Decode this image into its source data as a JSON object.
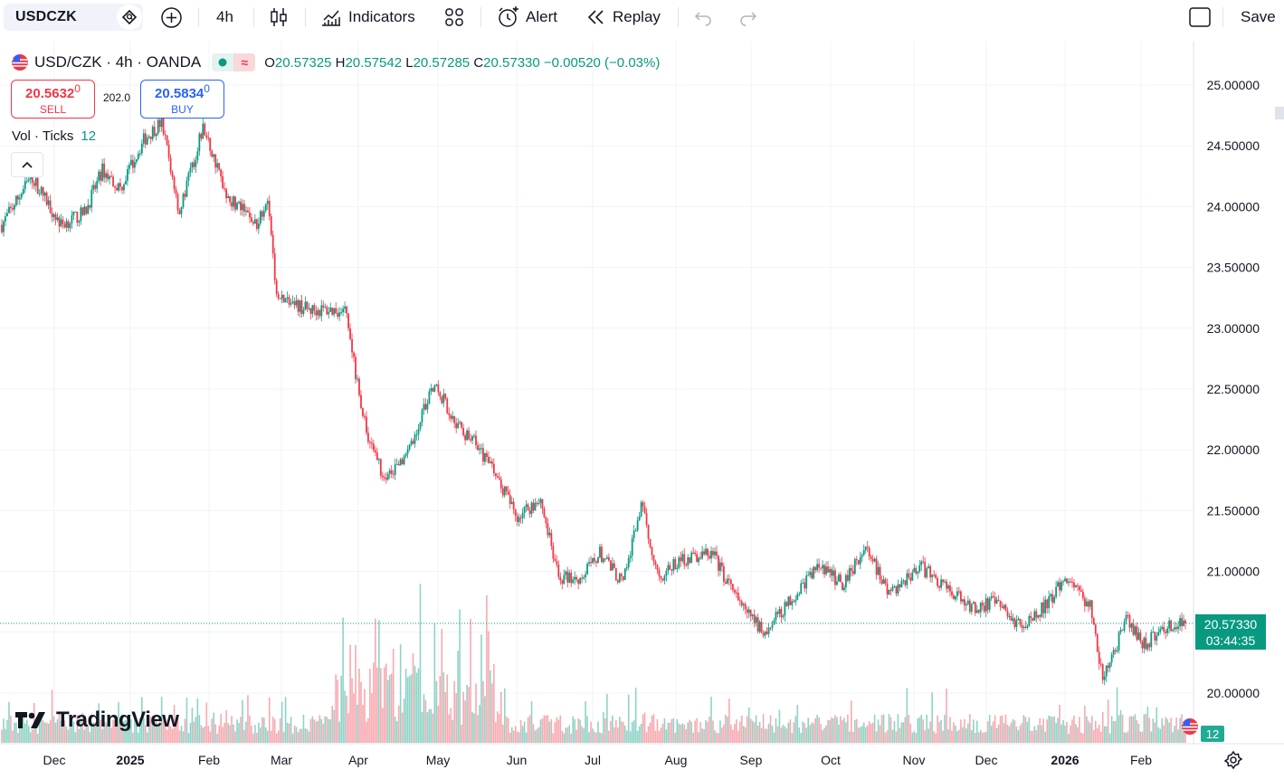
{
  "toolbar": {
    "symbol": "USDCZK",
    "interval": "4h",
    "indicators_label": "Indicators",
    "alert_label": "Alert",
    "replay_label": "Replay",
    "save_label": "Save"
  },
  "legend": {
    "title": "USD/CZK · 4h · OANDA",
    "open_key": "O",
    "open": "20.57325",
    "high_key": "H",
    "high": "20.57542",
    "low_key": "L",
    "low": "20.57285",
    "close_key": "C",
    "close": "20.57330",
    "change": "−0.00520 (−0.03%)"
  },
  "trade": {
    "sell_price": "20.5632",
    "sell_price_sup": "0",
    "sell_label": "SELL",
    "buy_price": "20.5834",
    "buy_price_sup": "0",
    "buy_label": "BUY",
    "spread": "202.0"
  },
  "volume_legend": {
    "label": "Vol · Ticks",
    "value": "12"
  },
  "current_price": {
    "price": "20.57330",
    "countdown": "03:44:35"
  },
  "volume_badge": "12",
  "logo_text": "TradingView",
  "colors": {
    "up": "#089981",
    "down": "#f23645",
    "up_vol": "#8fd3c6",
    "down_vol": "#f7a9b0",
    "grid": "#f0f3fa",
    "accent": "#2962ff"
  },
  "icons": {
    "symbol_search": "search-diamond-icon",
    "add_symbol": "plus-circle-icon",
    "chart_type": "candles-icon",
    "indicators": "indicators-icon",
    "layouts": "grid-icon",
    "alert": "alarm-clock-icon",
    "replay": "rewind-icon",
    "undo": "undo-icon",
    "redo": "redo-icon",
    "fullscreen": "square-icon",
    "settings": "gear-icon"
  },
  "chart_data": {
    "type": "candlestick",
    "y_ticks": [
      "25.00000",
      "24.50000",
      "24.00000",
      "23.50000",
      "23.00000",
      "22.50000",
      "22.00000",
      "21.50000",
      "21.00000",
      "20.50000",
      "20.00000"
    ],
    "x_ticks": [
      "Dec",
      "2025",
      "Feb",
      "Mar",
      "Apr",
      "May",
      "Jun",
      "Jul",
      "Aug",
      "Sep",
      "Oct",
      "Nov",
      "Dec",
      "2026",
      "Feb"
    ],
    "ylim": [
      19.86,
      25.1
    ],
    "last_price": 20.5733,
    "path": [
      {
        "t": 0,
        "p": 23.85
      },
      {
        "t": 0.025,
        "p": 24.25
      },
      {
        "t": 0.05,
        "p": 23.85
      },
      {
        "t": 0.07,
        "p": 23.95
      },
      {
        "t": 0.085,
        "p": 24.3
      },
      {
        "t": 0.1,
        "p": 24.15
      },
      {
        "t": 0.12,
        "p": 24.55
      },
      {
        "t": 0.135,
        "p": 24.7
      },
      {
        "t": 0.15,
        "p": 23.95
      },
      {
        "t": 0.17,
        "p": 24.65
      },
      {
        "t": 0.19,
        "p": 24.1
      },
      {
        "t": 0.215,
        "p": 23.85
      },
      {
        "t": 0.225,
        "p": 24.1
      },
      {
        "t": 0.232,
        "p": 23.25
      },
      {
        "t": 0.26,
        "p": 23.15
      },
      {
        "t": 0.29,
        "p": 23.15
      },
      {
        "t": 0.3,
        "p": 22.55
      },
      {
        "t": 0.31,
        "p": 22.05
      },
      {
        "t": 0.325,
        "p": 21.75
      },
      {
        "t": 0.345,
        "p": 22.0
      },
      {
        "t": 0.365,
        "p": 22.55
      },
      {
        "t": 0.385,
        "p": 22.2
      },
      {
        "t": 0.4,
        "p": 22.05
      },
      {
        "t": 0.42,
        "p": 21.75
      },
      {
        "t": 0.435,
        "p": 21.45
      },
      {
        "t": 0.455,
        "p": 21.6
      },
      {
        "t": 0.47,
        "p": 20.95
      },
      {
        "t": 0.49,
        "p": 20.95
      },
      {
        "t": 0.505,
        "p": 21.15
      },
      {
        "t": 0.525,
        "p": 20.9
      },
      {
        "t": 0.54,
        "p": 21.55
      },
      {
        "t": 0.555,
        "p": 20.95
      },
      {
        "t": 0.575,
        "p": 21.1
      },
      {
        "t": 0.6,
        "p": 21.15
      },
      {
        "t": 0.625,
        "p": 20.7
      },
      {
        "t": 0.645,
        "p": 20.5
      },
      {
        "t": 0.665,
        "p": 20.75
      },
      {
        "t": 0.69,
        "p": 21.05
      },
      {
        "t": 0.71,
        "p": 20.9
      },
      {
        "t": 0.73,
        "p": 21.2
      },
      {
        "t": 0.75,
        "p": 20.8
      },
      {
        "t": 0.775,
        "p": 21.05
      },
      {
        "t": 0.8,
        "p": 20.85
      },
      {
        "t": 0.82,
        "p": 20.7
      },
      {
        "t": 0.84,
        "p": 20.75
      },
      {
        "t": 0.86,
        "p": 20.55
      },
      {
        "t": 0.88,
        "p": 20.7
      },
      {
        "t": 0.9,
        "p": 20.95
      },
      {
        "t": 0.92,
        "p": 20.7
      },
      {
        "t": 0.93,
        "p": 20.1
      },
      {
        "t": 0.95,
        "p": 20.6
      },
      {
        "t": 0.965,
        "p": 20.4
      },
      {
        "t": 0.985,
        "p": 20.55
      },
      {
        "t": 1.0,
        "p": 20.57
      }
    ]
  }
}
